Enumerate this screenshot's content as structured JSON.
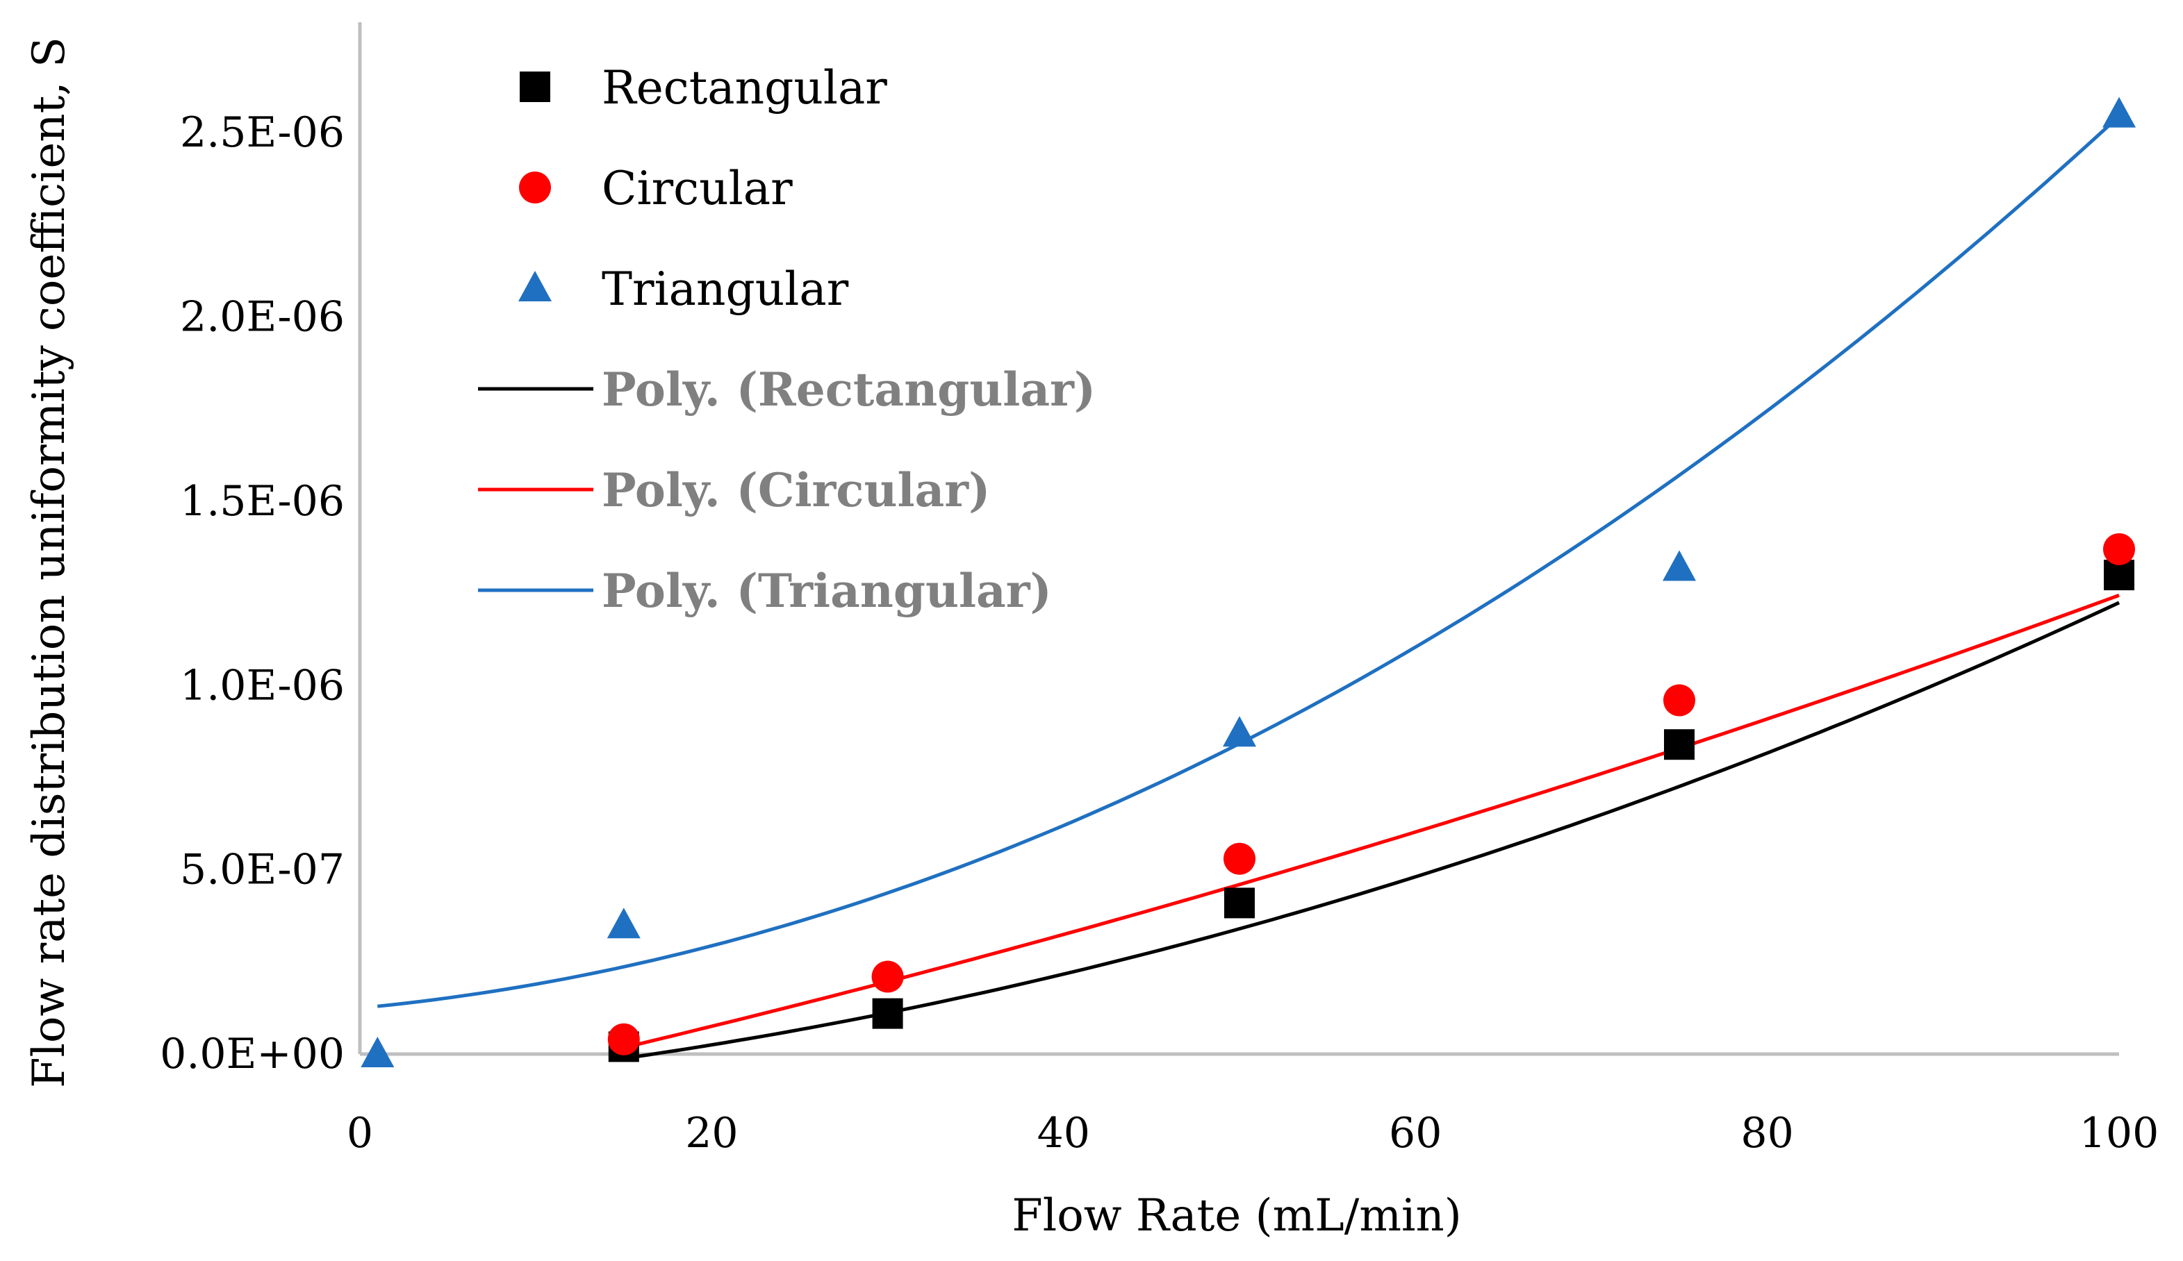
{
  "chart_data": {
    "type": "scatter",
    "title": "",
    "xlabel": "Flow Rate (mL/min)",
    "ylabel": "Flow rate distribution uniformity coefficient, S",
    "xlim": [
      0,
      100
    ],
    "ylim": [
      0,
      2.8e-06
    ],
    "grid": false,
    "legend_position": "top-left",
    "x_ticks": [
      {
        "value": 0,
        "label": "0"
      },
      {
        "value": 20,
        "label": "20"
      },
      {
        "value": 40,
        "label": "40"
      },
      {
        "value": 60,
        "label": "60"
      },
      {
        "value": 80,
        "label": "80"
      },
      {
        "value": 100,
        "label": "100"
      }
    ],
    "y_ticks": [
      {
        "value": 0,
        "label": "0.0E+00"
      },
      {
        "value": 5e-07,
        "label": "5.0E-07"
      },
      {
        "value": 1e-06,
        "label": "1.0E-06"
      },
      {
        "value": 1.5e-06,
        "label": "1.5E-06"
      },
      {
        "value": 2e-06,
        "label": "2.0E-06"
      },
      {
        "value": 2.5e-06,
        "label": "2.5E-06"
      }
    ],
    "series": [
      {
        "name": "Rectangular",
        "marker": "square",
        "color": "#000000",
        "points": [
          {
            "x": 15,
            "y": 2e-08
          },
          {
            "x": 30,
            "y": 1.1e-07
          },
          {
            "x": 50,
            "y": 4.1e-07
          },
          {
            "x": 75,
            "y": 8.4e-07
          },
          {
            "x": 100,
            "y": 1.3e-06
          }
        ]
      },
      {
        "name": "Circular",
        "marker": "circle",
        "color": "#ff0000",
        "points": [
          {
            "x": 15,
            "y": 4e-08
          },
          {
            "x": 30,
            "y": 2.1e-07
          },
          {
            "x": 50,
            "y": 5.3e-07
          },
          {
            "x": 75,
            "y": 9.6e-07
          },
          {
            "x": 100,
            "y": 1.37e-06
          }
        ]
      },
      {
        "name": "Triangular",
        "marker": "triangle",
        "color": "#1f70c1",
        "points": [
          {
            "x": 1,
            "y": 0
          },
          {
            "x": 15,
            "y": 3.5e-07
          },
          {
            "x": 50,
            "y": 8.7e-07
          },
          {
            "x": 75,
            "y": 1.32e-06
          },
          {
            "x": 100,
            "y": 2.55e-06
          }
        ]
      }
    ],
    "trendlines": [
      {
        "name": "Poly. (Rectangular)",
        "type": "polynomial",
        "color": "#000000",
        "x_range": [
          15,
          100
        ],
        "coefficients": [
          -9.5e-08,
          4.2e-09,
          9e-11
        ]
      },
      {
        "name": "Poly. (Circular)",
        "type": "polynomial",
        "color": "#ff0000",
        "x_range": [
          15,
          100
        ],
        "coefficients": [
          -1.45e-07,
          1.03e-08,
          3.6e-11
        ]
      },
      {
        "name": "Poly. (Triangular)",
        "type": "polynomial",
        "color": "#1f70c1",
        "x_range": [
          1,
          100
        ],
        "coefficients": [
          1.25e-07,
          4.5e-09,
          1.97e-10
        ]
      }
    ]
  }
}
